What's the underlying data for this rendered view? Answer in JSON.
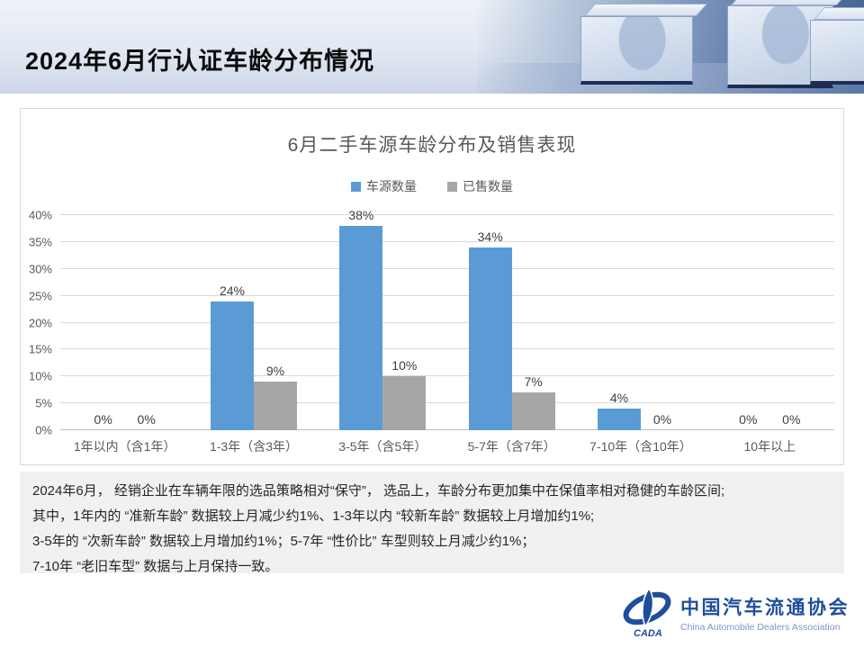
{
  "header": {
    "title": "2024年6月行认证车龄分布情况"
  },
  "chart_data": {
    "type": "bar",
    "title": "6月二手车源车龄分布及销售表现",
    "categories": [
      "1年以内（含1年）",
      "1-3年（含3年）",
      "3-5年（含5年）",
      "5-7年（含7年）",
      "7-10年（含10年）",
      "10年以上"
    ],
    "series": [
      {
        "name": "车源数量",
        "color": "#5b9bd5",
        "values": [
          0,
          24,
          38,
          34,
          4,
          0
        ]
      },
      {
        "name": "已售数量",
        "color": "#a6a6a6",
        "values": [
          0,
          9,
          10,
          7,
          0,
          0
        ]
      }
    ],
    "ylim": [
      0,
      40
    ],
    "ytick_step": 5,
    "ytick_labels": [
      "0%",
      "5%",
      "10%",
      "15%",
      "20%",
      "25%",
      "30%",
      "35%",
      "40%"
    ],
    "value_suffix": "%",
    "grid": true,
    "legend_position": "top"
  },
  "summary": {
    "lines": [
      "2024年6月， 经销企业在车辆年限的选品策略相对“保守”， 选品上，车龄分布更加集中在保值率相对稳健的车龄区间;",
      "其中，1年内的 “准新车龄” 数据较上月减少约1%、1-3年以内 “较新车龄” 数据较上月增加约1%;",
      "3-5年的 “次新车龄” 数据较上月增加约1%；5-7年 “性价比” 车型则较上月减少约1%；",
      "7-10年 “老旧车型” 数据与上月保持一致。"
    ]
  },
  "footer": {
    "logo_cn": "中国汽车流通协会",
    "logo_en": "China Automobile Dealers Association",
    "logo_mark": "CADA"
  },
  "colors": {
    "bar_blue": "#5b9bd5",
    "bar_gray": "#a6a6a6",
    "logo_blue": "#1f4e9c"
  }
}
